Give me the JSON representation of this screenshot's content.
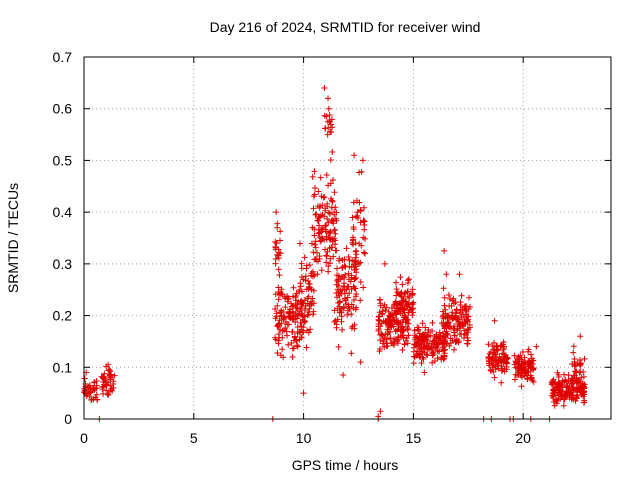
{
  "chart_data": {
    "type": "scatter",
    "title": "Day 216 of 2024, SRMTID for receiver wind",
    "xlabel": "GPS time / hours",
    "ylabel": "SRMTID / TECUs",
    "xlim": [
      0,
      24
    ],
    "ylim": [
      0,
      0.7
    ],
    "x_ticks": [
      0,
      5,
      10,
      15,
      20
    ],
    "x_tick_labels": [
      "0",
      "5",
      "10",
      "15",
      "20"
    ],
    "y_ticks": [
      0,
      0.1,
      0.2,
      0.3,
      0.4,
      0.5,
      0.6,
      0.7
    ],
    "y_tick_labels": [
      "0",
      "0.1",
      "0.2",
      "0.3",
      "0.4",
      "0.5",
      "0.6",
      "0.7"
    ],
    "grid": true,
    "marker": "plus",
    "colors": {
      "series": "#e00000",
      "grid": "#a0a0a0",
      "axis": "#000000"
    },
    "series": [
      {
        "name": "SRMTID",
        "segments": [
          {
            "x": [
              0.0,
              0.6
            ],
            "mean": 0.055,
            "spread": 0.03,
            "count": 40
          },
          {
            "x": [
              0.8,
              1.4
            ],
            "mean": 0.07,
            "spread": 0.04,
            "count": 45
          },
          {
            "x": [
              8.7,
              9.0
            ],
            "mean": 0.32,
            "spread": 0.08,
            "count": 18
          },
          {
            "x": [
              8.7,
              10.3
            ],
            "mean": 0.2,
            "spread": 0.09,
            "count": 150
          },
          {
            "x": [
              9.8,
              10.5
            ],
            "mean": 0.27,
            "spread": 0.12,
            "count": 45
          },
          {
            "x": [
              10.4,
              11.5
            ],
            "mean": 0.38,
            "spread": 0.15,
            "count": 120
          },
          {
            "x": [
              10.9,
              11.3
            ],
            "mean": 0.57,
            "spread": 0.07,
            "count": 15
          },
          {
            "x": [
              11.4,
              12.4
            ],
            "mean": 0.24,
            "spread": 0.13,
            "count": 110
          },
          {
            "x": [
              12.2,
              12.8
            ],
            "mean": 0.35,
            "spread": 0.15,
            "count": 45
          },
          {
            "x": [
              13.4,
              14.8
            ],
            "mean": 0.18,
            "spread": 0.07,
            "count": 150
          },
          {
            "x": [
              14.2,
              15.0
            ],
            "mean": 0.23,
            "spread": 0.06,
            "count": 70
          },
          {
            "x": [
              15.0,
              16.5
            ],
            "mean": 0.145,
            "spread": 0.05,
            "count": 150
          },
          {
            "x": [
              16.3,
              17.6
            ],
            "mean": 0.19,
            "spread": 0.07,
            "count": 140
          },
          {
            "x": [
              18.4,
              19.3
            ],
            "mean": 0.12,
            "spread": 0.05,
            "count": 90
          },
          {
            "x": [
              19.6,
              20.5
            ],
            "mean": 0.1,
            "spread": 0.045,
            "count": 90
          },
          {
            "x": [
              21.3,
              22.8
            ],
            "mean": 0.055,
            "spread": 0.04,
            "count": 170
          },
          {
            "x": [
              22.2,
              22.8
            ],
            "mean": 0.1,
            "spread": 0.05,
            "count": 25
          }
        ],
        "points": [
          [
            10.95,
            0.64
          ],
          [
            11.15,
            0.6
          ],
          [
            11.2,
            0.575
          ],
          [
            12.3,
            0.51
          ],
          [
            12.7,
            0.5
          ],
          [
            8.75,
            0.4
          ],
          [
            8.8,
            0.37
          ],
          [
            0.1,
            0.09
          ],
          [
            1.1,
            0.105
          ],
          [
            13.5,
            0.015
          ],
          [
            13.4,
            0.005
          ],
          [
            16.4,
            0.325
          ],
          [
            16.5,
            0.28
          ],
          [
            13.7,
            0.3
          ],
          [
            18.7,
            0.19
          ],
          [
            22.6,
            0.16
          ],
          [
            20.6,
            0.14
          ],
          [
            17.1,
            0.28
          ],
          [
            12.6,
            0.11
          ],
          [
            10.0,
            0.05
          ],
          [
            11.8,
            0.085
          ],
          [
            9.5,
            0.12
          ],
          [
            14.5,
            0.26
          ],
          [
            15.5,
            0.09
          ],
          [
            19.0,
            0.07
          ]
        ]
      }
    ],
    "zero_markers_x": [
      0.7,
      8.6,
      13.4,
      18.2,
      18.55,
      19.4,
      19.55,
      20.35,
      21.2
    ]
  }
}
